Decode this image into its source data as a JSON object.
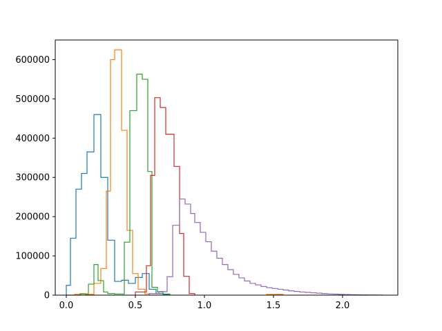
{
  "chart_data": {
    "type": "step-histogram",
    "title": "",
    "xlabel": "",
    "ylabel": "",
    "xlim": [
      -0.08,
      2.4
    ],
    "ylim": [
      0,
      650000
    ],
    "grid": false,
    "legend": "none",
    "x_ticks": [
      {
        "value": 0.0,
        "label": "0.0"
      },
      {
        "value": 0.5,
        "label": "0.5"
      },
      {
        "value": 1.0,
        "label": "1.0"
      },
      {
        "value": 1.5,
        "label": "1.5"
      },
      {
        "value": 2.0,
        "label": "2.0"
      }
    ],
    "y_ticks": [
      {
        "value": 0,
        "label": "0"
      },
      {
        "value": 100000,
        "label": "100000"
      },
      {
        "value": 200000,
        "label": "200000"
      },
      {
        "value": 300000,
        "label": "300000"
      },
      {
        "value": 400000,
        "label": "400000"
      },
      {
        "value": 500000,
        "label": "500000"
      },
      {
        "value": 600000,
        "label": "600000"
      }
    ],
    "series": [
      {
        "color": "#1f77b4",
        "bins": [
          [
            0.0,
            0.03,
            25000
          ],
          [
            0.03,
            0.07,
            145000
          ],
          [
            0.07,
            0.11,
            270000
          ],
          [
            0.11,
            0.15,
            310000
          ],
          [
            0.15,
            0.2,
            365000
          ],
          [
            0.2,
            0.25,
            460000
          ],
          [
            0.25,
            0.3,
            300000
          ],
          [
            0.3,
            0.35,
            140000
          ],
          [
            0.35,
            0.4,
            35000
          ],
          [
            0.4,
            0.45,
            38000
          ],
          [
            0.45,
            0.5,
            30000
          ],
          [
            0.5,
            0.55,
            45000
          ],
          [
            0.55,
            0.6,
            55000
          ],
          [
            0.6,
            0.65,
            15000
          ],
          [
            0.65,
            0.7,
            4000
          ],
          [
            0.7,
            0.75,
            2000
          ]
        ]
      },
      {
        "color": "#ff7f0e",
        "bins": [
          [
            0.0,
            0.06,
            0
          ],
          [
            0.06,
            0.1,
            2000
          ],
          [
            0.1,
            0.14,
            4000
          ],
          [
            0.14,
            0.2,
            2000
          ],
          [
            0.2,
            0.25,
            30000
          ],
          [
            0.25,
            0.29,
            68000
          ],
          [
            0.29,
            0.32,
            265000
          ],
          [
            0.32,
            0.35,
            600000
          ],
          [
            0.35,
            0.4,
            625000
          ],
          [
            0.4,
            0.44,
            420000
          ],
          [
            0.44,
            0.48,
            165000
          ],
          [
            0.48,
            0.52,
            55000
          ],
          [
            0.52,
            0.57,
            15000
          ],
          [
            0.57,
            0.6,
            3000
          ],
          [
            1.45,
            1.57,
            2000
          ]
        ]
      },
      {
        "color": "#2ca02c",
        "bins": [
          [
            0.1,
            0.16,
            3000
          ],
          [
            0.16,
            0.2,
            28000
          ],
          [
            0.2,
            0.23,
            78000
          ],
          [
            0.23,
            0.27,
            37000
          ],
          [
            0.27,
            0.3,
            8000
          ],
          [
            0.3,
            0.35,
            4000
          ],
          [
            0.35,
            0.42,
            3000
          ],
          [
            0.42,
            0.46,
            135000
          ],
          [
            0.46,
            0.51,
            470000
          ],
          [
            0.51,
            0.55,
            563000
          ],
          [
            0.55,
            0.59,
            550000
          ],
          [
            0.59,
            0.62,
            315000
          ],
          [
            0.62,
            0.66,
            20000
          ],
          [
            0.66,
            0.7,
            8000
          ],
          [
            0.7,
            0.75,
            3000
          ]
        ]
      },
      {
        "color": "#d62728",
        "bins": [
          [
            0.5,
            0.58,
            8000
          ],
          [
            0.58,
            0.61,
            75000
          ],
          [
            0.61,
            0.64,
            305000
          ],
          [
            0.64,
            0.68,
            503000
          ],
          [
            0.68,
            0.72,
            478000
          ],
          [
            0.72,
            0.78,
            410000
          ],
          [
            0.78,
            0.82,
            328000
          ],
          [
            0.82,
            0.85,
            157000
          ],
          [
            0.85,
            0.89,
            48000
          ],
          [
            0.89,
            0.93,
            4000
          ]
        ]
      },
      {
        "color": "#9467bd",
        "bins": [
          [
            0.6,
            0.67,
            4000
          ],
          [
            0.67,
            0.73,
            9000
          ],
          [
            0.73,
            0.77,
            47000
          ],
          [
            0.77,
            0.82,
            178000
          ],
          [
            0.82,
            0.86,
            245000
          ],
          [
            0.86,
            0.9,
            232000
          ],
          [
            0.9,
            0.93,
            208000
          ],
          [
            0.93,
            0.97,
            185000
          ],
          [
            0.97,
            1.01,
            160000
          ],
          [
            1.01,
            1.05,
            136000
          ],
          [
            1.05,
            1.09,
            112000
          ],
          [
            1.09,
            1.13,
            94000
          ],
          [
            1.13,
            1.17,
            78000
          ],
          [
            1.17,
            1.21,
            65000
          ],
          [
            1.21,
            1.25,
            53000
          ],
          [
            1.25,
            1.29,
            44000
          ],
          [
            1.29,
            1.33,
            36000
          ],
          [
            1.33,
            1.37,
            30000
          ],
          [
            1.37,
            1.41,
            26000
          ],
          [
            1.41,
            1.45,
            22000
          ],
          [
            1.45,
            1.49,
            19000
          ],
          [
            1.49,
            1.53,
            17000
          ],
          [
            1.53,
            1.57,
            15000
          ],
          [
            1.57,
            1.61,
            13000
          ],
          [
            1.61,
            1.65,
            11000
          ],
          [
            1.65,
            1.69,
            9500
          ],
          [
            1.69,
            1.73,
            8000
          ],
          [
            1.73,
            1.77,
            7000
          ],
          [
            1.77,
            1.81,
            6000
          ],
          [
            1.81,
            1.85,
            5000
          ],
          [
            1.85,
            1.89,
            4000
          ],
          [
            1.89,
            1.93,
            3200
          ],
          [
            1.93,
            1.97,
            2600
          ],
          [
            1.97,
            2.01,
            2000
          ],
          [
            2.01,
            2.05,
            1600
          ],
          [
            2.05,
            2.09,
            1200
          ],
          [
            2.09,
            2.13,
            900
          ],
          [
            2.13,
            2.17,
            700
          ],
          [
            2.17,
            2.21,
            500
          ],
          [
            2.21,
            2.25,
            400
          ],
          [
            2.25,
            2.29,
            300
          ]
        ]
      }
    ]
  }
}
